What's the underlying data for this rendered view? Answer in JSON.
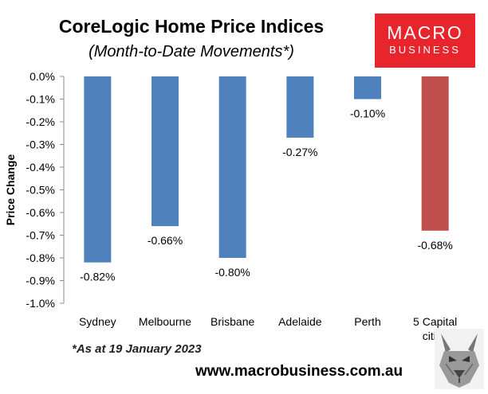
{
  "header": {
    "title": "CoreLogic Home Price Indices",
    "subtitle": "(Month-to-Date Movements*)"
  },
  "logo": {
    "line1": "MACRO",
    "line2": "BUSINESS",
    "color": "#e8242d"
  },
  "footer": {
    "footnote": "*As at 19 January 2023",
    "url": "www.macrobusiness.com.au",
    "mascot_icon": "wolf-icon"
  },
  "chart_data": {
    "type": "bar",
    "categories": [
      "Sydney",
      "Melbourne",
      "Brisbane",
      "Adelaide",
      "Perth",
      "5 Capital cities"
    ],
    "values": [
      -0.82,
      -0.66,
      -0.8,
      -0.27,
      -0.1,
      -0.68
    ],
    "data_labels": [
      "-0.82%",
      "-0.66%",
      "-0.80%",
      "-0.27%",
      "-0.10%",
      "-0.68%"
    ],
    "colors": [
      "#4f81bd",
      "#4f81bd",
      "#4f81bd",
      "#4f81bd",
      "#4f81bd",
      "#c0504d"
    ],
    "ylabel": "Price Change",
    "ylim": [
      -1.0,
      0.0
    ],
    "yticks": [
      0.0,
      -0.1,
      -0.2,
      -0.3,
      -0.4,
      -0.5,
      -0.6,
      -0.7,
      -0.8,
      -0.9,
      -1.0
    ],
    "ytick_labels": [
      "0.0%",
      "-0.1%",
      "-0.2%",
      "-0.3%",
      "-0.4%",
      "-0.5%",
      "-0.6%",
      "-0.7%",
      "-0.8%",
      "-0.9%",
      "-1.0%"
    ],
    "grid": false,
    "legend": "none"
  }
}
